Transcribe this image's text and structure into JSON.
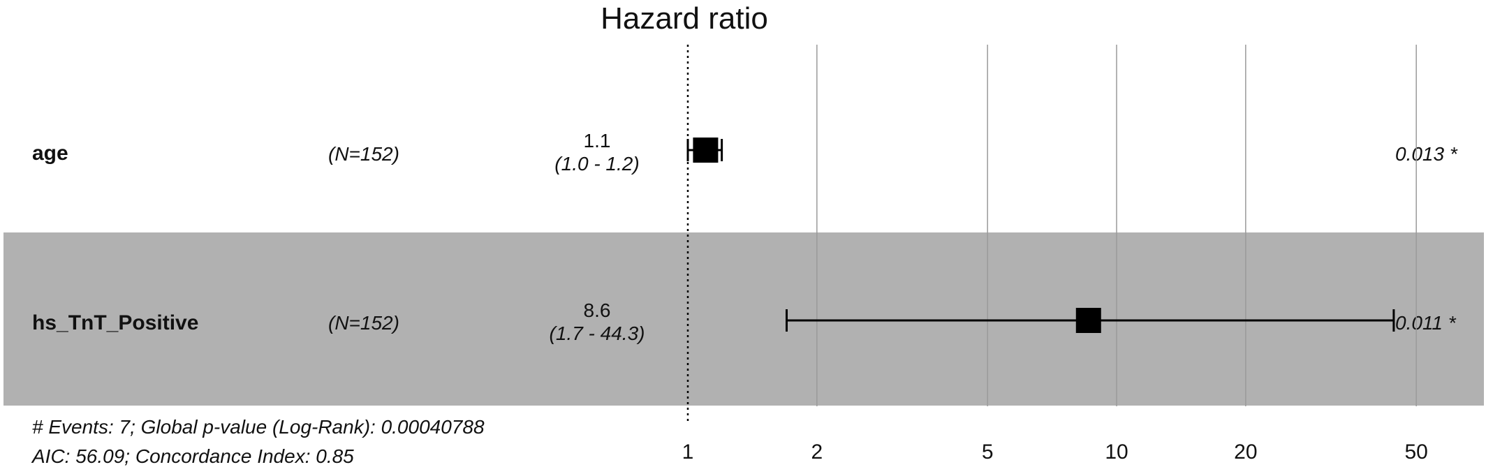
{
  "chart_data": {
    "type": "forest",
    "title": "Hazard ratio",
    "x_scale": "log",
    "xlim": [
      0.85,
      75
    ],
    "x_ticks": [
      1,
      2,
      5,
      10,
      20,
      50
    ],
    "x_tick_labels": [
      "1",
      "2",
      "5",
      "10",
      "20",
      "50"
    ],
    "reference_line": 1,
    "rows": [
      {
        "variable": "age",
        "n_label": "(N=152)",
        "hr": 1.1,
        "ci_low": 1.0,
        "ci_high": 1.2,
        "hr_label": "1.1",
        "ci_label": "(1.0 -  1.2)",
        "p_label": "0.013 *",
        "shaded": false
      },
      {
        "variable": "hs_TnT_Positive",
        "n_label": "(N=152)",
        "hr": 8.6,
        "ci_low": 1.7,
        "ci_high": 44.3,
        "hr_label": "8.6",
        "ci_label": "(1.7 - 44.3)",
        "p_label": "0.011 *",
        "shaded": true
      }
    ],
    "footer": [
      "# Events: 7; Global p-value (Log-Rank): 0.00040788",
      "AIC: 56.09; Concordance Index: 0.85"
    ],
    "colors": {
      "shade": "#b1b1b1",
      "grid": "#9a9a9a",
      "marker": "#000000",
      "text": "#111111"
    }
  }
}
